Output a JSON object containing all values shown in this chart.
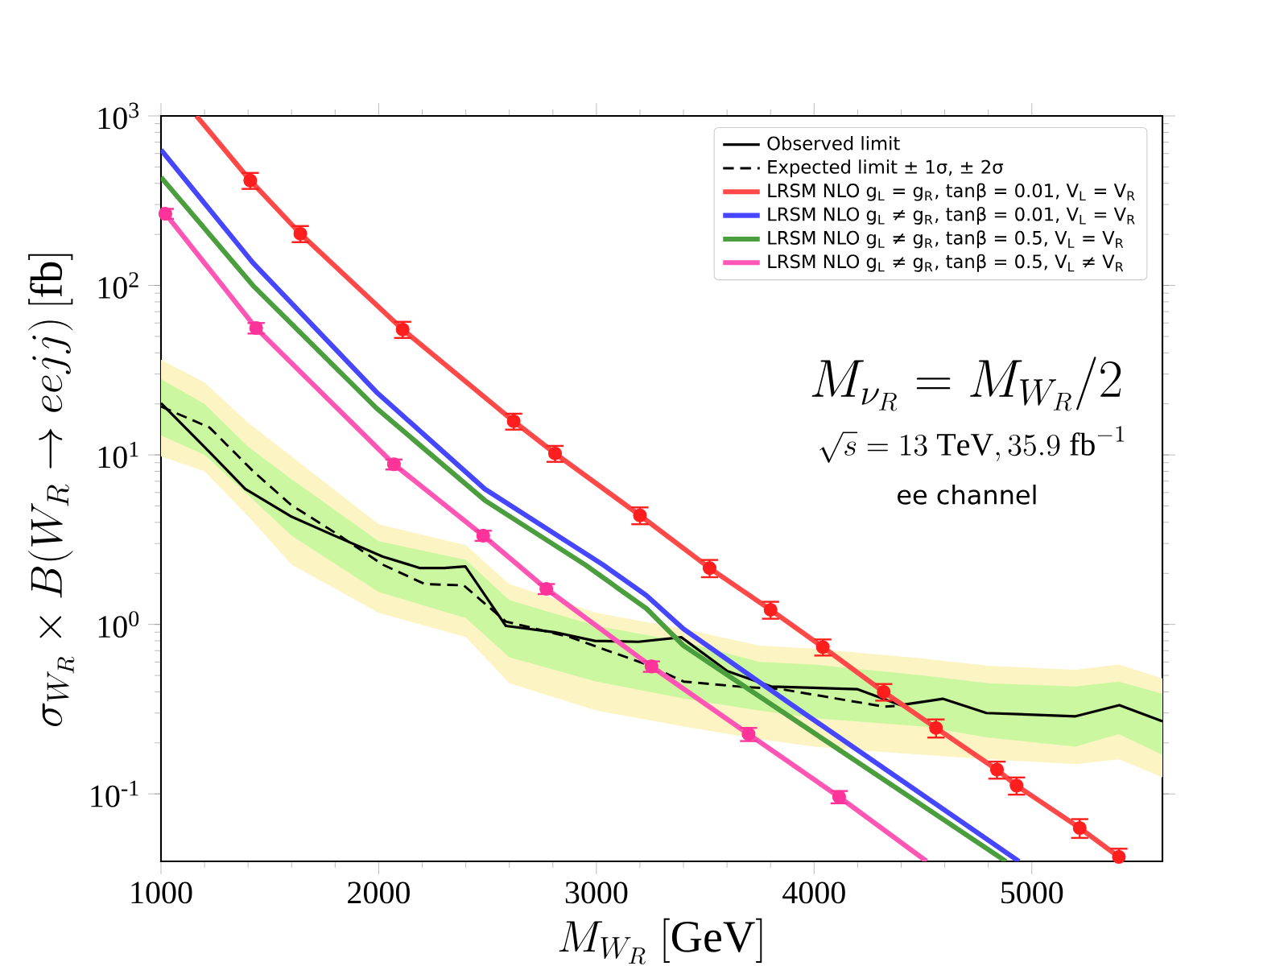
{
  "chart_data": {
    "type": "line",
    "xlabel": "M_{W_R}\\ [\\mathrm{GeV}]",
    "ylabel": "\\sigma_{W_R} \\times B(W_R \\rightarrow eejj)\\,[\\mathrm{fb}]",
    "annotations": [
      "M_{\\nu_R} = M_{W_R}/2",
      "\\sqrt{s} = 13\\ \\mathrm{TeV}, 35.9\\ \\mathrm{fb}^{-1}",
      "ee channel"
    ],
    "log": "y",
    "legend": "top right",
    "xlim": [
      1000,
      5600
    ],
    "xticks": [
      1000,
      2000,
      3000,
      4000,
      5000
    ],
    "ylim": [
      0.04,
      1000
    ],
    "yticks": [
      {
        "value": 0.1,
        "label": "10$^{-1}$"
      },
      {
        "value": 1,
        "label": "10$^{0}$"
      },
      {
        "value": 10,
        "label": "10$^{1}$"
      },
      {
        "value": 100,
        "label": "10$^{2}$"
      },
      {
        "value": 1000,
        "label": "10$^{3}$"
      }
    ],
    "series": [
      {
        "color": "#fdf4c4",
        "x": [
          1000,
          1200,
          1400,
          1600,
          2000,
          2400,
          2600,
          3000,
          3400,
          3750,
          4000,
          4500,
          4800,
          5200,
          5400,
          5600
        ],
        "values": [
          null,
          null,
          null,
          null,
          null,
          null,
          null,
          null,
          null,
          null,
          null,
          null,
          null,
          null,
          null,
          null
        ],
        "lower": [
          9.8,
          8.0,
          4.35,
          2.25,
          1.17,
          0.84,
          0.45,
          0.31,
          0.25,
          0.21,
          0.19,
          0.17,
          0.16,
          0.15,
          0.16,
          0.125
        ],
        "upper": [
          36.5,
          26.8,
          15.5,
          9.8,
          3.9,
          2.93,
          1.73,
          1.17,
          0.94,
          0.75,
          0.72,
          0.63,
          0.57,
          0.54,
          0.58,
          0.48
        ]
      },
      {
        "color": "#ccf7a1",
        "x": [
          1000,
          1200,
          1400,
          1600,
          2000,
          2400,
          2600,
          3000,
          3400,
          3750,
          4000,
          4500,
          4800,
          5200,
          5400,
          5600
        ],
        "values": [
          null,
          null,
          null,
          null,
          null,
          null,
          null,
          null,
          null,
          null,
          null,
          null,
          null,
          null,
          null,
          null
        ],
        "lower": [
          13,
          10,
          5.8,
          3.34,
          1.55,
          1.09,
          0.64,
          0.46,
          0.365,
          0.31,
          0.28,
          0.25,
          0.215,
          0.19,
          0.225,
          0.17
        ],
        "upper": [
          28,
          20,
          11.2,
          7.2,
          3.1,
          2.4,
          1.39,
          0.98,
          0.79,
          0.6,
          0.58,
          0.5,
          0.45,
          0.43,
          0.46,
          0.39
        ]
      },
      {
        "name": "Observed limit",
        "color": "#000000",
        "line_style": "solid",
        "x": [
          1000,
          1223,
          1387,
          1595,
          1796,
          2019,
          2190,
          2301,
          2398,
          2584,
          2807,
          2993,
          3193,
          3390,
          3602,
          3803,
          4197,
          4398,
          4591,
          4792,
          5201,
          5402,
          5600
        ],
        "values": [
          20.2,
          10.4,
          6.3,
          4.35,
          3.34,
          2.51,
          2.15,
          2.15,
          2.2,
          0.98,
          0.9,
          0.8,
          0.79,
          0.84,
          0.53,
          0.43,
          0.415,
          0.334,
          0.364,
          0.3,
          0.287,
          0.334,
          0.268
        ]
      },
      {
        "name": "Expected limit ± 1σ, ± 2σ",
        "color": "#000000",
        "line_style": "dashed",
        "x": [
          1000,
          1223,
          1424,
          1595,
          1796,
          2019,
          2212,
          2390,
          2584,
          2881,
          3230,
          3401,
          3654,
          3848,
          4323,
          4370
        ],
        "values": [
          19.3,
          14.5,
          8.0,
          5.1,
          3.5,
          2.25,
          1.73,
          1.7,
          1.04,
          0.84,
          0.58,
          0.46,
          0.43,
          0.415,
          0.327,
          0.33
        ]
      },
      {
        "name": "LRSM NLO g$_{L}$ = g$_{R}$, tanβ = 0.01, V$_{L}$ = V$_{R}$",
        "color": "#ff4848",
        "line_style": "solid",
        "x": [
          1163,
          1410,
          1640,
          2110,
          2620,
          2810,
          3200,
          3520,
          3800,
          4040,
          4320,
          4560,
          4840,
          4930,
          5220,
          5400
        ],
        "values": [
          1000,
          416,
          202,
          55,
          15.8,
          10.2,
          4.4,
          2.15,
          1.22,
          0.735,
          0.4,
          0.245,
          0.139,
          0.112,
          0.063,
          0.0425
        ]
      },
      {
        "name": "LRSM NLO g$_{L}$ ≠ g$_{R}$, tanβ = 0.01, V$_{L}$ = V$_{R}$",
        "color": "#4646ff",
        "line_style": "solid",
        "x": [
          1000,
          1422,
          1989,
          2487,
          3030,
          3230,
          3400,
          3900,
          4941
        ],
        "values": [
          631,
          136,
          23.5,
          6.3,
          2.25,
          1.48,
          0.94,
          0.334,
          0.04
        ]
      },
      {
        "name": "LRSM NLO g$_{L}$ ≠ g$_{R}$, tanβ = 0.5, V$_{L}$ = V$_{R}$",
        "color": "#4a9e3e",
        "line_style": "solid",
        "x": [
          1000,
          1422,
          1989,
          2487,
          2948,
          3230,
          3400,
          4881
        ],
        "values": [
          435,
          100,
          18.9,
          5.4,
          2.25,
          1.24,
          0.75,
          0.04
        ]
      },
      {
        "name": "LRSM NLO g$_{L}$ ≠ g$_{R}$, tanβ = 0.5, V$_{L}$ ≠ V$_{R}$",
        "color": "#ff55b4",
        "line_style": "solid",
        "x": [
          1000,
          1020,
          1437,
          2070,
          2480,
          2770,
          3253,
          3699,
          4115,
          4517
        ],
        "values": [
          285,
          265,
          56,
          8.8,
          3.34,
          1.62,
          0.565,
          0.225,
          0.096,
          0.04
        ]
      },
      {
        "type": "scatter",
        "color": "#ff1e1e",
        "x": [
          1410,
          1640,
          2110,
          2620,
          2810,
          3200,
          3520,
          3800,
          4040,
          4320,
          4560,
          4840,
          4930,
          5220,
          5400
        ],
        "values": [
          416,
          202,
          55,
          15.8,
          10.2,
          4.4,
          2.15,
          1.22,
          0.735,
          0.4,
          0.245,
          0.139,
          0.112,
          0.063,
          0.0425
        ],
        "errors": [
          45,
          22,
          6,
          1.7,
          1.1,
          0.5,
          0.25,
          0.14,
          0.08,
          0.045,
          0.03,
          0.016,
          0.013,
          0.008,
          0.005
        ]
      },
      {
        "type": "scatter",
        "color": "#ff3399",
        "x": [
          1020,
          1437,
          2070,
          2480,
          2770,
          3253,
          3699,
          4115
        ],
        "values": [
          265,
          56,
          8.8,
          3.34,
          1.62,
          0.565,
          0.225,
          0.096
        ],
        "errors": [
          18,
          4,
          0.6,
          0.23,
          0.11,
          0.04,
          0.02,
          0.008
        ]
      }
    ]
  }
}
